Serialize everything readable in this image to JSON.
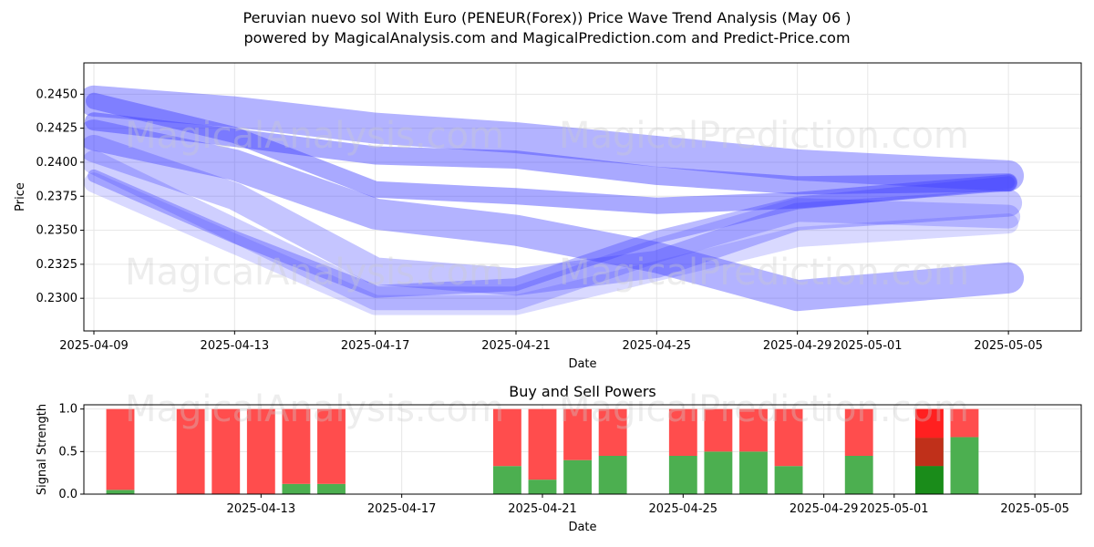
{
  "header": {
    "title_line1": "Peruvian nuevo sol With Euro (PENEUR(Forex)) Price Wave Trend Analysis (May 06 )",
    "title_line2": "powered by MagicalAnalysis.com and MagicalPrediction.com and Predict-Price.com"
  },
  "watermarks": [
    "MagicalAnalysis.com",
    "MagicalPrediction.com"
  ],
  "colors": {
    "wave": "#4040ff",
    "sell": "#ff4d4d",
    "buy": "#4caf50",
    "sell_strong": "#ff2020",
    "buy_strong": "#1a8c1a"
  },
  "chart_data": [
    {
      "type": "line",
      "xlabel": "Date",
      "ylabel": "Price",
      "x_ticks": [
        "2025-04-09",
        "2025-04-13",
        "2025-04-17",
        "2025-04-21",
        "2025-04-25",
        "2025-04-29",
        "2025-05-01",
        "2025-05-05"
      ],
      "y_ticks": [
        "0.2300",
        "0.2325",
        "0.2350",
        "0.2375",
        "0.2400",
        "0.2425",
        "0.2450"
      ],
      "ylim": [
        0.2276,
        0.2473
      ],
      "xlim": [
        "2025-04-09",
        "2025-05-06"
      ],
      "grid": true,
      "series": [
        {
          "x": [
            "2025-04-09",
            "2025-04-13",
            "2025-04-17",
            "2025-04-21",
            "2025-04-25",
            "2025-04-29",
            "2025-05-05"
          ],
          "y": [
            0.2445,
            0.2437,
            0.2425,
            0.2418,
            0.2408,
            0.2398,
            0.239
          ],
          "width": 34,
          "opacity": 0.4
        },
        {
          "x": [
            "2025-04-09",
            "2025-04-13",
            "2025-04-17",
            "2025-04-21",
            "2025-04-25",
            "2025-04-29",
            "2025-05-05"
          ],
          "y": [
            0.243,
            0.2418,
            0.2405,
            0.2402,
            0.239,
            0.2383,
            0.2385
          ],
          "width": 20,
          "opacity": 0.45
        },
        {
          "x": [
            "2025-04-09",
            "2025-04-13",
            "2025-04-17",
            "2025-04-21",
            "2025-04-25",
            "2025-04-29",
            "2025-05-05"
          ],
          "y": [
            0.2445,
            0.242,
            0.238,
            0.2375,
            0.2368,
            0.2372,
            0.2385
          ],
          "width": 18,
          "opacity": 0.45
        },
        {
          "x": [
            "2025-04-09",
            "2025-04-13",
            "2025-04-17",
            "2025-04-21",
            "2025-04-25",
            "2025-04-29",
            "2025-05-05"
          ],
          "y": [
            0.242,
            0.2398,
            0.2362,
            0.235,
            0.233,
            0.2302,
            0.2315
          ],
          "width": 34,
          "opacity": 0.4
        },
        {
          "x": [
            "2025-04-09",
            "2025-04-13",
            "2025-04-17",
            "2025-04-21",
            "2025-04-25",
            "2025-04-29",
            "2025-05-05"
          ],
          "y": [
            0.241,
            0.2375,
            0.232,
            0.2312,
            0.2325,
            0.236,
            0.237
          ],
          "width": 30,
          "opacity": 0.3
        },
        {
          "x": [
            "2025-04-09",
            "2025-04-13",
            "2025-04-17",
            "2025-04-21",
            "2025-04-25",
            "2025-04-29",
            "2025-05-05"
          ],
          "y": [
            0.24,
            0.235,
            0.23,
            0.23,
            0.2335,
            0.2365,
            0.236
          ],
          "width": 26,
          "opacity": 0.25
        },
        {
          "x": [
            "2025-04-09",
            "2025-04-13",
            "2025-04-17",
            "2025-04-21",
            "2025-04-25",
            "2025-04-29",
            "2025-05-05"
          ],
          "y": [
            0.239,
            0.2345,
            0.2305,
            0.231,
            0.2345,
            0.237,
            0.2385
          ],
          "width": 14,
          "opacity": 0.35
        },
        {
          "x": [
            "2025-04-09",
            "2025-04-13",
            "2025-04-17",
            "2025-04-21",
            "2025-04-25",
            "2025-04-29",
            "2025-05-05"
          ],
          "y": [
            0.2385,
            0.234,
            0.2295,
            0.2295,
            0.232,
            0.2345,
            0.2355
          ],
          "width": 22,
          "opacity": 0.2
        }
      ]
    },
    {
      "type": "bar",
      "title": "Buy and Sell Powers",
      "xlabel": "Date",
      "ylabel": "Signal Strength",
      "ylim": [
        0,
        1.05
      ],
      "y_ticks": [
        "0.0",
        "0.5",
        "1.0"
      ],
      "x_ticks": [
        "2025-04-13",
        "2025-04-17",
        "2025-04-21",
        "2025-04-25",
        "2025-04-29",
        "2025-05-01",
        "2025-05-05"
      ],
      "xlim": [
        "2025-04-09",
        "2025-05-06"
      ],
      "series": [
        {
          "name": "buy",
          "x": [
            "2025-04-10",
            "2025-04-12",
            "2025-04-13",
            "2025-04-14",
            "2025-04-15",
            "2025-04-16",
            "2025-04-21",
            "2025-04-22",
            "2025-04-23",
            "2025-04-24",
            "2025-04-26",
            "2025-04-27",
            "2025-04-28",
            "2025-04-29",
            "2025-05-01",
            "2025-05-03",
            "2025-05-04"
          ],
          "values": [
            0.05,
            0.0,
            0.0,
            0.0,
            0.12,
            0.12,
            0.33,
            0.17,
            0.4,
            0.45,
            0.45,
            0.5,
            0.5,
            0.33,
            0.45,
            0.67,
            0.67
          ]
        },
        {
          "name": "sell",
          "x": [
            "2025-04-10",
            "2025-04-12",
            "2025-04-13",
            "2025-04-14",
            "2025-04-15",
            "2025-04-16",
            "2025-04-21",
            "2025-04-22",
            "2025-04-23",
            "2025-04-24",
            "2025-04-26",
            "2025-04-27",
            "2025-04-28",
            "2025-04-29",
            "2025-05-01",
            "2025-05-03",
            "2025-05-04"
          ],
          "values": [
            0.95,
            1.0,
            1.0,
            1.0,
            0.88,
            0.88,
            0.67,
            0.83,
            0.6,
            0.55,
            0.55,
            0.5,
            0.5,
            0.67,
            0.55,
            0.33,
            0.33
          ]
        },
        {
          "name": "overlay",
          "x": [
            "2025-05-03"
          ],
          "buy": [
            0.33
          ],
          "sell": [
            0.33
          ]
        }
      ]
    }
  ]
}
